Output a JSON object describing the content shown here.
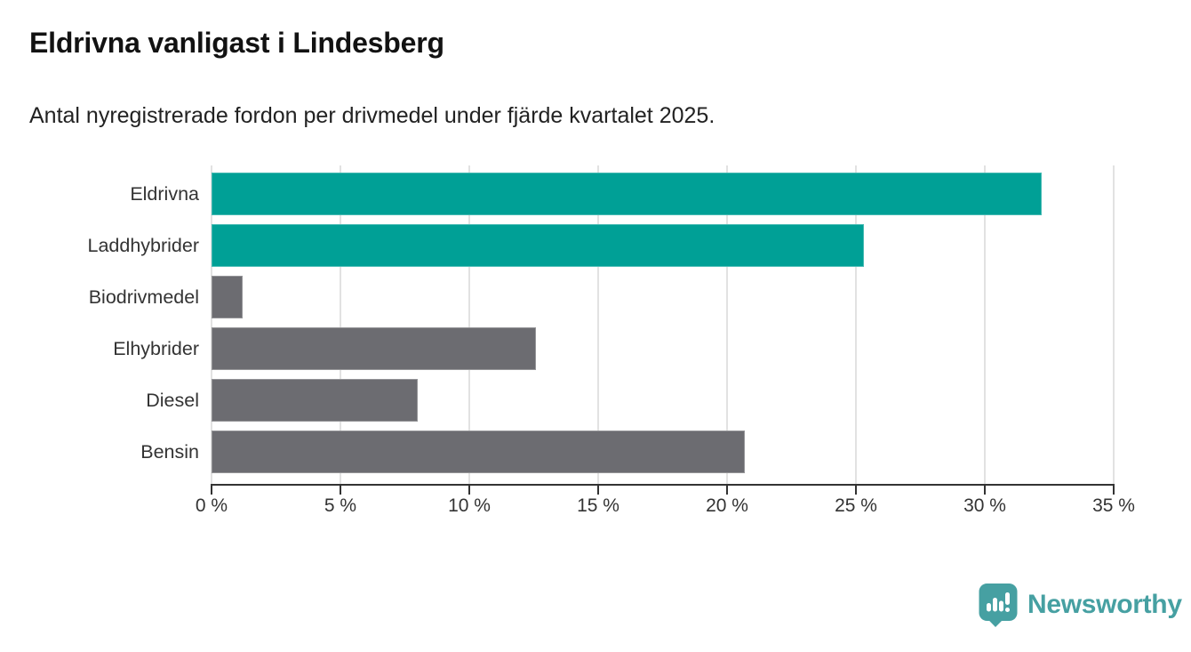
{
  "header": {
    "title": "Eldrivna vanligast i Lindesberg",
    "subtitle": "Antal nyregistrerade fordon per drivmedel under fjärde kvartalet 2025."
  },
  "branding": {
    "logo_text": "Newsworthy",
    "brand_color": "#46A0A2",
    "badge_icon": "bar-chart-exclamation-pin"
  },
  "chart_data": {
    "type": "bar",
    "orientation": "horizontal",
    "title": "Eldrivna vanligast i Lindesberg",
    "subtitle": "Antal nyregistrerade fordon per drivmedel under fjärde kvartalet 2025.",
    "categories": [
      "Eldrivna",
      "Laddhybrider",
      "Biodrivmedel",
      "Elhybrider",
      "Diesel",
      "Bensin"
    ],
    "values": [
      32.2,
      25.3,
      1.2,
      12.6,
      8.0,
      20.7
    ],
    "unit": "%",
    "bar_colors": [
      "#00A096",
      "#00A096",
      "#6C6C71",
      "#6C6C71",
      "#6C6C71",
      "#6C6C71"
    ],
    "highlight_color": "#00A096",
    "default_color": "#6C6C71",
    "xlabel": "",
    "ylabel": "",
    "xlim": [
      0,
      35
    ],
    "x_tick_values": [
      0,
      5,
      10,
      15,
      20,
      25,
      30,
      35
    ],
    "x_tick_labels": [
      "0 %",
      "5 %",
      "10 %",
      "15 %",
      "20 %",
      "25 %",
      "30 %",
      "35 %"
    ],
    "grid": "vertical",
    "legend": "none",
    "gridline_color": "#e2e2e2",
    "axis_color": "#333333"
  }
}
